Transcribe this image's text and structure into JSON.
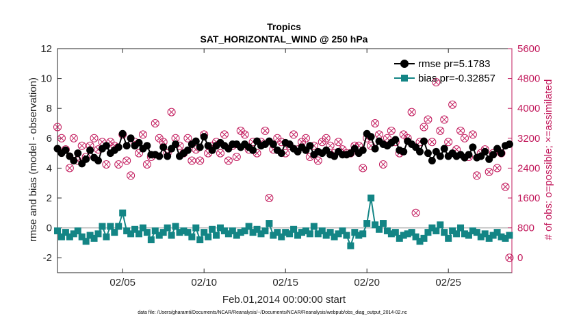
{
  "chart_data": {
    "type": "line",
    "title": "Tropics",
    "subtitle": "SAT_HORIZONTAL_WIND @ 250 hPa",
    "xlabel": "Feb.01,2014 00:00:00 start",
    "ylabel": "rmse and bias (model - observation)",
    "y2label": "# of obs: o=possible; ×=assimilated",
    "footnote": "data file: /Users/gharamti/Documents/NCAR/Reanalysis/~/Documents/NCAR/Reanalysis/webpub/obs_diag_output_2014-02.nc",
    "xlim": [
      1.0,
      28.9
    ],
    "ylim": [
      -3,
      12
    ],
    "y2lim": [
      -400,
      5600
    ],
    "x_ticks": [
      5,
      10,
      15,
      20,
      25
    ],
    "x_tick_labels": [
      "02/05",
      "02/10",
      "02/15",
      "02/20",
      "02/25"
    ],
    "y_ticks": [
      -2,
      0,
      2,
      4,
      6,
      8,
      10,
      12
    ],
    "y_tick_labels": [
      "-2",
      "0",
      "2",
      "4",
      "6",
      "8",
      "10",
      "12"
    ],
    "y2_ticks": [
      0,
      800,
      1600,
      2400,
      3200,
      4000,
      4800,
      5600
    ],
    "y2_tick_labels": [
      "0",
      "800",
      "1600",
      "2400",
      "3200",
      "4000",
      "4800",
      "5600"
    ],
    "zero_line": 0,
    "colors": {
      "rmse": "#000000",
      "bias": "#138585",
      "obs": "#c2185b",
      "zero": "#b0b0b0",
      "axis": "#262626"
    },
    "legend": {
      "position": "top-right",
      "entries": [
        "rmse pr=5.1783",
        "bias pr=-0.32857"
      ]
    },
    "series": [
      {
        "name": "rmse pr=5.1783",
        "axis": "left",
        "marker": "circle",
        "x": [
          1.0,
          1.25,
          1.5,
          1.75,
          2.0,
          2.25,
          2.5,
          2.75,
          3.0,
          3.25,
          3.5,
          3.75,
          4.0,
          4.25,
          4.5,
          4.75,
          5.0,
          5.25,
          5.5,
          5.75,
          6.0,
          6.25,
          6.5,
          6.75,
          7.0,
          7.25,
          7.5,
          7.75,
          8.0,
          8.25,
          8.5,
          8.75,
          9.0,
          9.25,
          9.5,
          9.75,
          10.0,
          10.25,
          10.5,
          10.75,
          11.0,
          11.25,
          11.5,
          11.75,
          12.0,
          12.25,
          12.5,
          12.75,
          13.0,
          13.25,
          13.5,
          13.75,
          14.0,
          14.25,
          14.5,
          14.75,
          15.0,
          15.25,
          15.5,
          15.75,
          16.0,
          16.25,
          16.5,
          16.75,
          17.0,
          17.25,
          17.5,
          17.75,
          18.0,
          18.25,
          18.5,
          18.75,
          19.0,
          19.25,
          19.5,
          19.75,
          20.0,
          20.25,
          20.5,
          20.75,
          21.0,
          21.25,
          21.5,
          21.75,
          22.0,
          22.25,
          22.5,
          22.75,
          23.0,
          23.25,
          23.5,
          23.75,
          24.0,
          24.25,
          24.5,
          24.75,
          25.0,
          25.25,
          25.5,
          25.75,
          26.0,
          26.25,
          26.5,
          26.75,
          27.0,
          27.25,
          27.5,
          27.75,
          28.0,
          28.25,
          28.5,
          28.75
        ],
        "y": [
          5.3,
          5.0,
          5.2,
          4.8,
          4.5,
          5.0,
          4.3,
          4.6,
          5.2,
          4.7,
          4.5,
          5.3,
          5.5,
          5.0,
          5.2,
          5.4,
          6.3,
          5.5,
          6.0,
          5.5,
          5.7,
          5.3,
          5.5,
          4.9,
          4.9,
          4.8,
          5.4,
          4.8,
          5.3,
          5.6,
          4.8,
          5.0,
          5.2,
          5.6,
          5.8,
          5.4,
          6.1,
          5.5,
          5.2,
          5.5,
          5.7,
          5.5,
          5.3,
          5.6,
          5.6,
          5.4,
          5.6,
          5.4,
          5.2,
          5.8,
          5.5,
          5.6,
          5.8,
          5.6,
          5.2,
          5.0,
          5.7,
          5.6,
          5.3,
          5.1,
          5.4,
          5.2,
          5.5,
          4.9,
          5.1,
          5.0,
          5.2,
          4.9,
          4.8,
          5.1,
          4.9,
          4.9,
          5.0,
          5.3,
          5.0,
          5.2,
          6.3,
          6.1,
          5.3,
          5.8,
          5.6,
          5.5,
          5.7,
          5.9,
          5.2,
          5.1,
          5.8,
          5.6,
          5.4,
          5.1,
          5.8,
          5.0,
          4.5,
          5.1,
          4.8,
          5.3,
          4.8,
          5.0,
          4.8,
          4.9,
          4.7,
          4.9,
          5.4,
          4.7,
          4.8,
          5.1,
          4.6,
          4.9,
          5.3,
          5.0,
          5.5,
          5.6
        ]
      },
      {
        "name": "bias pr=-0.32857",
        "axis": "left",
        "marker": "square",
        "x": [
          1.0,
          1.25,
          1.5,
          1.75,
          2.0,
          2.25,
          2.5,
          2.75,
          3.0,
          3.25,
          3.5,
          3.75,
          4.0,
          4.25,
          4.5,
          4.75,
          5.0,
          5.25,
          5.5,
          5.75,
          6.0,
          6.25,
          6.5,
          6.75,
          7.0,
          7.25,
          7.5,
          7.75,
          8.0,
          8.25,
          8.5,
          8.75,
          9.0,
          9.25,
          9.5,
          9.75,
          10.0,
          10.25,
          10.5,
          10.75,
          11.0,
          11.25,
          11.5,
          11.75,
          12.0,
          12.25,
          12.5,
          12.75,
          13.0,
          13.25,
          13.5,
          13.75,
          14.0,
          14.25,
          14.5,
          14.75,
          15.0,
          15.25,
          15.5,
          15.75,
          16.0,
          16.25,
          16.5,
          16.75,
          17.0,
          17.25,
          17.5,
          17.75,
          18.0,
          18.25,
          18.5,
          18.75,
          19.0,
          19.25,
          19.5,
          19.75,
          20.0,
          20.25,
          20.5,
          20.75,
          21.0,
          21.25,
          21.5,
          21.75,
          22.0,
          22.25,
          22.5,
          22.75,
          23.0,
          23.25,
          23.5,
          23.75,
          24.0,
          24.25,
          24.5,
          24.75,
          25.0,
          25.25,
          25.5,
          25.75,
          26.0,
          26.25,
          26.5,
          26.75,
          27.0,
          27.25,
          27.5,
          27.75,
          28.0,
          28.25,
          28.5,
          28.75
        ],
        "y": [
          -0.2,
          -0.6,
          -0.3,
          -0.6,
          -0.4,
          -0.2,
          -0.6,
          -0.9,
          -0.5,
          -0.7,
          -0.4,
          0.1,
          -0.6,
          0.1,
          -0.3,
          0.1,
          1.0,
          -0.2,
          -0.4,
          -0.1,
          -0.4,
          0.0,
          -0.3,
          -0.8,
          -0.2,
          -0.5,
          -0.3,
          0.0,
          -0.5,
          0.1,
          -0.3,
          -0.2,
          -0.3,
          -0.6,
          0.0,
          -0.8,
          -0.3,
          -0.6,
          -0.1,
          -0.5,
          0.0,
          -0.2,
          -0.4,
          -0.2,
          -0.5,
          -0.3,
          -0.2,
          0.1,
          -0.3,
          -0.1,
          -0.4,
          -0.2,
          0.3,
          -0.5,
          -0.3,
          -0.6,
          -0.3,
          -0.4,
          -0.1,
          -0.5,
          -0.3,
          -0.2,
          -0.4,
          0.1,
          -0.4,
          -0.2,
          -0.5,
          -0.3,
          -0.6,
          -0.4,
          -0.2,
          -0.5,
          -1.2,
          -0.3,
          -0.5,
          -0.4,
          0.3,
          2.0,
          0.2,
          -0.1,
          0.3,
          -0.2,
          -0.4,
          -0.3,
          -0.7,
          -0.5,
          -0.4,
          -0.3,
          -0.6,
          -0.9,
          -0.7,
          -0.3,
          0.0,
          -0.2,
          0.2,
          -0.3,
          -0.7,
          -0.2,
          -0.4,
          0.0,
          -0.4,
          -0.5,
          -0.2,
          -0.3,
          -0.6,
          -0.4,
          -0.7,
          -0.5,
          -0.3,
          -0.6,
          -0.7,
          -0.5
        ]
      },
      {
        "name": "# of obs possible/assimilated",
        "axis": "right",
        "marker": "circle-x",
        "x": [
          1.0,
          1.25,
          1.5,
          1.75,
          2.0,
          2.25,
          2.5,
          2.75,
          3.0,
          3.25,
          3.5,
          3.75,
          4.0,
          4.25,
          4.5,
          4.75,
          5.0,
          5.25,
          5.5,
          5.75,
          6.0,
          6.25,
          6.5,
          6.75,
          7.0,
          7.25,
          7.5,
          7.75,
          8.0,
          8.25,
          8.5,
          8.75,
          9.0,
          9.25,
          9.5,
          9.75,
          10.0,
          10.25,
          10.5,
          10.75,
          11.0,
          11.25,
          11.5,
          11.75,
          12.0,
          12.25,
          12.5,
          12.75,
          13.0,
          13.25,
          13.5,
          13.75,
          14.0,
          14.25,
          14.5,
          14.75,
          15.0,
          15.25,
          15.5,
          15.75,
          16.0,
          16.25,
          16.5,
          16.75,
          17.0,
          17.25,
          17.5,
          17.75,
          18.0,
          18.25,
          18.5,
          18.75,
          19.0,
          19.25,
          19.5,
          19.75,
          20.0,
          20.25,
          20.5,
          20.75,
          21.0,
          21.25,
          21.5,
          21.75,
          22.0,
          22.25,
          22.5,
          22.75,
          23.0,
          23.25,
          23.5,
          23.75,
          24.0,
          24.25,
          24.5,
          24.75,
          25.0,
          25.25,
          25.5,
          25.75,
          26.0,
          26.25,
          26.5,
          26.75,
          27.0,
          27.25,
          27.5,
          27.75,
          28.0,
          28.25,
          28.5,
          28.75
        ],
        "y": [
          3500,
          3200,
          2900,
          2400,
          3200,
          2600,
          3000,
          2700,
          3000,
          3200,
          2900,
          3100,
          2500,
          3100,
          3000,
          2500,
          3300,
          2600,
          2200,
          3100,
          2800,
          3300,
          2500,
          2700,
          3600,
          3200,
          3100,
          2800,
          3900,
          3200,
          3000,
          2800,
          3200,
          2600,
          2900,
          2600,
          3300,
          2800,
          3000,
          3100,
          2800,
          3300,
          2600,
          3000,
          2700,
          3400,
          3300,
          2900,
          3100,
          2800,
          3100,
          3400,
          1600,
          2900,
          3200,
          3100,
          2800,
          3000,
          3300,
          2900,
          3100,
          3200,
          2700,
          3000,
          2600,
          3100,
          3200,
          3000,
          2800,
          3100,
          2900,
          2800,
          2800,
          3000,
          3000,
          2400,
          3200,
          3000,
          3600,
          3300,
          2500,
          3200,
          3400,
          3100,
          2800,
          3300,
          3200,
          3900,
          1200,
          3100,
          3500,
          3700,
          3100,
          4700,
          3400,
          3700,
          3100,
          4100,
          2900,
          3400,
          3200,
          2700,
          3300,
          2200,
          2800,
          2900,
          2300,
          2800,
          2400,
          2800,
          1900,
          0
        ]
      }
    ]
  }
}
